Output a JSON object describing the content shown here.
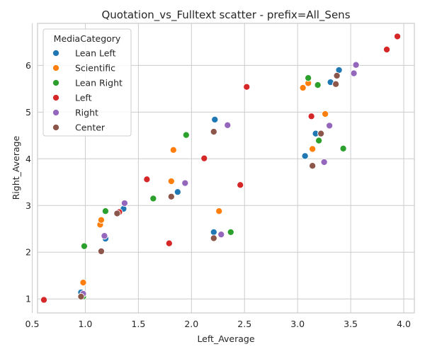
{
  "chart_data": {
    "type": "scatter",
    "title": "Quotation_vs_Fulltext scatter - prefix=All_Sens",
    "xlabel": "Left_Average",
    "ylabel": "Right_Average",
    "xlim": [
      0.55,
      4.1
    ],
    "ylim": [
      0.7,
      6.9
    ],
    "xticks": [
      "0.5",
      "1.0",
      "1.5",
      "2.0",
      "2.5",
      "3.0",
      "3.5",
      "4.0"
    ],
    "yticks": [
      "1",
      "2",
      "3",
      "4",
      "5",
      "6"
    ],
    "grid": true,
    "legend": {
      "title": "MediaCategory",
      "placement": "top-left"
    },
    "series": [
      {
        "name": "Lean Left",
        "color": "#1f77b4",
        "points": [
          [
            0.96,
            1.14
          ],
          [
            1.19,
            2.29
          ],
          [
            1.36,
            2.93
          ],
          [
            1.87,
            3.29
          ],
          [
            2.21,
            2.43
          ],
          [
            2.22,
            4.84
          ],
          [
            3.07,
            4.06
          ],
          [
            3.17,
            4.54
          ],
          [
            3.31,
            5.64
          ],
          [
            3.39,
            5.9
          ]
        ]
      },
      {
        "name": "Scientific",
        "color": "#ff7f0e",
        "points": [
          [
            0.98,
            1.35
          ],
          [
            1.14,
            2.59
          ],
          [
            1.15,
            2.69
          ],
          [
            1.81,
            3.52
          ],
          [
            1.83,
            4.19
          ],
          [
            2.26,
            2.88
          ],
          [
            3.05,
            5.52
          ],
          [
            3.1,
            5.62
          ],
          [
            3.14,
            4.21
          ],
          [
            3.26,
            4.96
          ]
        ]
      },
      {
        "name": "Lean Right",
        "color": "#2ca02c",
        "points": [
          [
            0.98,
            1.05
          ],
          [
            0.99,
            2.13
          ],
          [
            1.19,
            2.88
          ],
          [
            1.64,
            3.15
          ],
          [
            1.95,
            4.51
          ],
          [
            2.37,
            2.43
          ],
          [
            3.1,
            5.73
          ],
          [
            3.19,
            5.58
          ],
          [
            3.2,
            4.39
          ],
          [
            3.43,
            4.22
          ]
        ]
      },
      {
        "name": "Left",
        "color": "#d62728",
        "points": [
          [
            0.61,
            0.98
          ],
          [
            1.32,
            2.86
          ],
          [
            1.58,
            3.56
          ],
          [
            1.79,
            2.19
          ],
          [
            2.12,
            4.01
          ],
          [
            2.46,
            3.44
          ],
          [
            2.52,
            5.54
          ],
          [
            3.13,
            4.91
          ],
          [
            3.84,
            6.34
          ],
          [
            3.94,
            6.62
          ]
        ]
      },
      {
        "name": "Right",
        "color": "#9467bd",
        "points": [
          [
            0.98,
            1.11
          ],
          [
            1.18,
            2.35
          ],
          [
            1.37,
            3.05
          ],
          [
            1.94,
            3.48
          ],
          [
            2.28,
            2.38
          ],
          [
            2.34,
            4.72
          ],
          [
            3.25,
            3.93
          ],
          [
            3.3,
            4.71
          ],
          [
            3.53,
            5.83
          ],
          [
            3.55,
            6.01
          ]
        ]
      },
      {
        "name": "Center",
        "color": "#8c564b",
        "points": [
          [
            0.96,
            1.05
          ],
          [
            1.15,
            2.02
          ],
          [
            1.3,
            2.83
          ],
          [
            1.81,
            3.19
          ],
          [
            2.21,
            2.3
          ],
          [
            2.21,
            4.58
          ],
          [
            3.14,
            3.85
          ],
          [
            3.22,
            4.54
          ],
          [
            3.36,
            5.6
          ],
          [
            3.37,
            5.78
          ]
        ]
      }
    ]
  }
}
